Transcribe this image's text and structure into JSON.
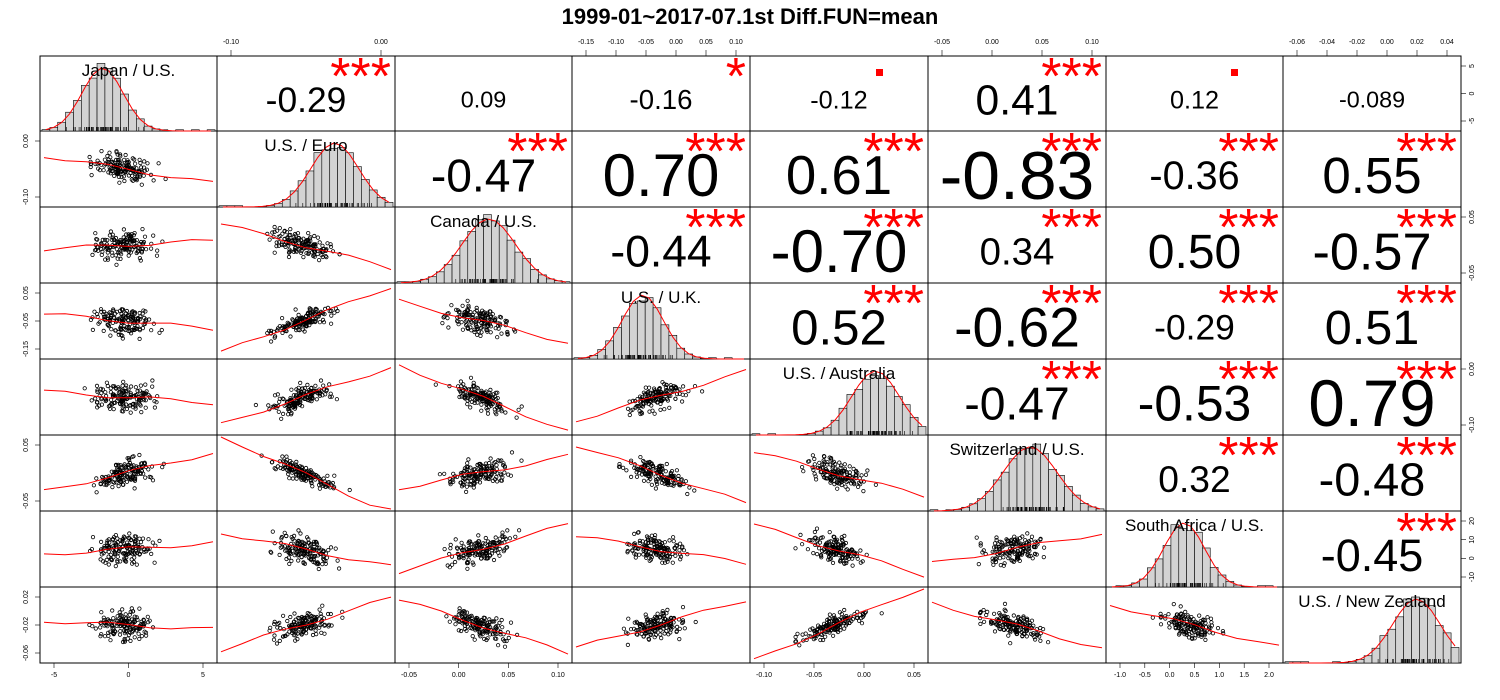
{
  "chart_data": {
    "type": "scatter-matrix",
    "title": "1999-01~2017-07.1st Diff.FUN=mean",
    "variables": [
      "Japan / U.S.",
      "U.S. / Euro",
      "Canada / U.S.",
      "U.S. / U.K.",
      "U.S. / Australia",
      "Switzerland / U.S.",
      "South Africa / U.S.",
      "U.S. / New Zealand"
    ],
    "axis_ticks": [
      {
        "var": "Japan / U.S.",
        "ticks": [
          "-5",
          "0",
          "5"
        ]
      },
      {
        "var": "U.S. / Euro",
        "ticks": [
          "-0.10",
          "0.00"
        ]
      },
      {
        "var": "Canada / U.S.",
        "ticks": [
          "-0.05",
          "0.00",
          "0.05",
          "0.10"
        ]
      },
      {
        "var": "U.S. / U.K.",
        "ticks": [
          "-0.15",
          "-0.10",
          "-0.05",
          "0.00",
          "0.05",
          "0.10"
        ]
      },
      {
        "var": "U.S. / Australia",
        "ticks": [
          "-0.10",
          "-0.05",
          "0.00",
          "0.05"
        ]
      },
      {
        "var": "Switzerland / U.S.",
        "ticks": [
          "-0.05",
          "0.00",
          "0.05",
          "0.10"
        ]
      },
      {
        "var": "South Africa / U.S.",
        "ticks": [
          "-1.0",
          "-0.5",
          "0.0",
          "0.5",
          "1.0",
          "1.5",
          "2.0"
        ]
      },
      {
        "var": "U.S. / New Zealand",
        "ticks": [
          "-0.06",
          "-0.04",
          "-0.02",
          "0.00",
          "0.02",
          "0.04"
        ]
      }
    ],
    "right_axis_ticks": [
      {
        "var": "Japan / U.S.",
        "ticks": [
          "5",
          "0",
          "-5"
        ]
      },
      {
        "var": "Canada / U.S.",
        "ticks": [
          "0.05",
          "-0.05"
        ]
      },
      {
        "var": "U.S. / Australia",
        "ticks": [
          "0.00",
          "-0.10"
        ]
      },
      {
        "var": "South Africa / U.S.",
        "ticks": [
          "20",
          "10",
          "0",
          "-10"
        ]
      }
    ],
    "left_axis_ticks": [
      {
        "var": "U.S. / Euro",
        "ticks": [
          "0.00",
          "-0.10"
        ]
      },
      {
        "var": "U.S. / U.K.",
        "ticks": [
          "0.05",
          "-0.05",
          "-0.15"
        ]
      },
      {
        "var": "Switzerland / U.S.",
        "ticks": [
          "0.05",
          "-0.05"
        ]
      },
      {
        "var": "U.S. / New Zealand",
        "ticks": [
          "0.02",
          "-0.02",
          "-0.06"
        ]
      }
    ],
    "correlations": [
      {
        "row": 0,
        "col": 1,
        "r": "-0.29",
        "stars": "***"
      },
      {
        "row": 0,
        "col": 2,
        "r": "0.09",
        "stars": ""
      },
      {
        "row": 0,
        "col": 3,
        "r": "-0.16",
        "stars": "*"
      },
      {
        "row": 0,
        "col": 4,
        "r": "-0.12",
        "stars": "."
      },
      {
        "row": 0,
        "col": 5,
        "r": "0.41",
        "stars": "***"
      },
      {
        "row": 0,
        "col": 6,
        "r": "0.12",
        "stars": "."
      },
      {
        "row": 0,
        "col": 7,
        "r": "-0.089",
        "stars": ""
      },
      {
        "row": 1,
        "col": 2,
        "r": "-0.47",
        "stars": "***"
      },
      {
        "row": 1,
        "col": 3,
        "r": "0.70",
        "stars": "***"
      },
      {
        "row": 1,
        "col": 4,
        "r": "0.61",
        "stars": "***"
      },
      {
        "row": 1,
        "col": 5,
        "r": "-0.83",
        "stars": "***"
      },
      {
        "row": 1,
        "col": 6,
        "r": "-0.36",
        "stars": "***"
      },
      {
        "row": 1,
        "col": 7,
        "r": "0.55",
        "stars": "***"
      },
      {
        "row": 2,
        "col": 3,
        "r": "-0.44",
        "stars": "***"
      },
      {
        "row": 2,
        "col": 4,
        "r": "-0.70",
        "stars": "***"
      },
      {
        "row": 2,
        "col": 5,
        "r": "0.34",
        "stars": "***"
      },
      {
        "row": 2,
        "col": 6,
        "r": "0.50",
        "stars": "***"
      },
      {
        "row": 2,
        "col": 7,
        "r": "-0.57",
        "stars": "***"
      },
      {
        "row": 3,
        "col": 4,
        "r": "0.52",
        "stars": "***"
      },
      {
        "row": 3,
        "col": 5,
        "r": "-0.62",
        "stars": "***"
      },
      {
        "row": 3,
        "col": 6,
        "r": "-0.29",
        "stars": "***"
      },
      {
        "row": 3,
        "col": 7,
        "r": "0.51",
        "stars": "***"
      },
      {
        "row": 4,
        "col": 5,
        "r": "-0.47",
        "stars": "***"
      },
      {
        "row": 4,
        "col": 6,
        "r": "-0.53",
        "stars": "***"
      },
      {
        "row": 4,
        "col": 7,
        "r": "0.79",
        "stars": "***"
      },
      {
        "row": 5,
        "col": 6,
        "r": "0.32",
        "stars": "***"
      },
      {
        "row": 5,
        "col": 7,
        "r": "-0.48",
        "stars": "***"
      },
      {
        "row": 6,
        "col": 7,
        "r": "-0.45",
        "stars": "***"
      }
    ],
    "colors": {
      "hist_fill": "#d3d3d3",
      "fit_line": "#ff0000",
      "stars": "#ff0000",
      "points": "#000000"
    }
  }
}
